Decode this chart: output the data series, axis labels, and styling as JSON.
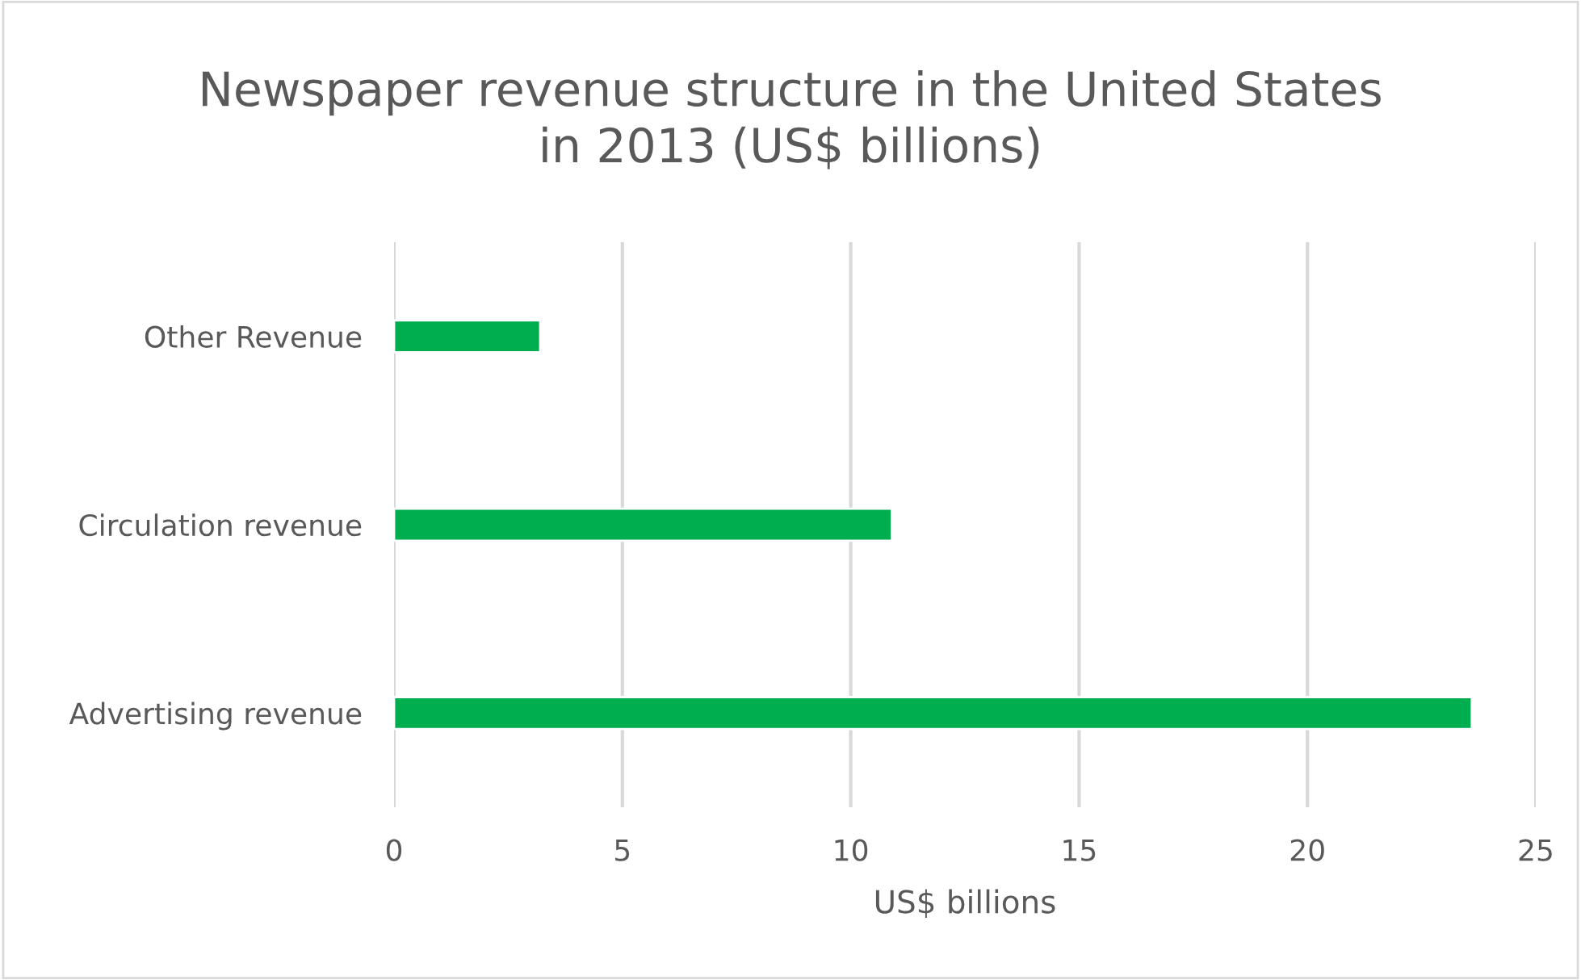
{
  "chart_data": {
    "type": "bar",
    "orientation": "horizontal",
    "title": "Newspaper revenue structure in the United States\nin 2013 (US$ billions)",
    "xlabel": "US$ billions",
    "categories": [
      "Other Revenue",
      "Circulation revenue",
      "Advertising revenue"
    ],
    "series": [
      {
        "color": "#00ad4f",
        "values": [
          3.2,
          10.9,
          23.6
        ]
      }
    ],
    "xlim": [
      0,
      25
    ],
    "xticks": [
      0,
      5,
      10,
      15,
      20,
      25
    ],
    "grid": "x",
    "legend": false
  }
}
